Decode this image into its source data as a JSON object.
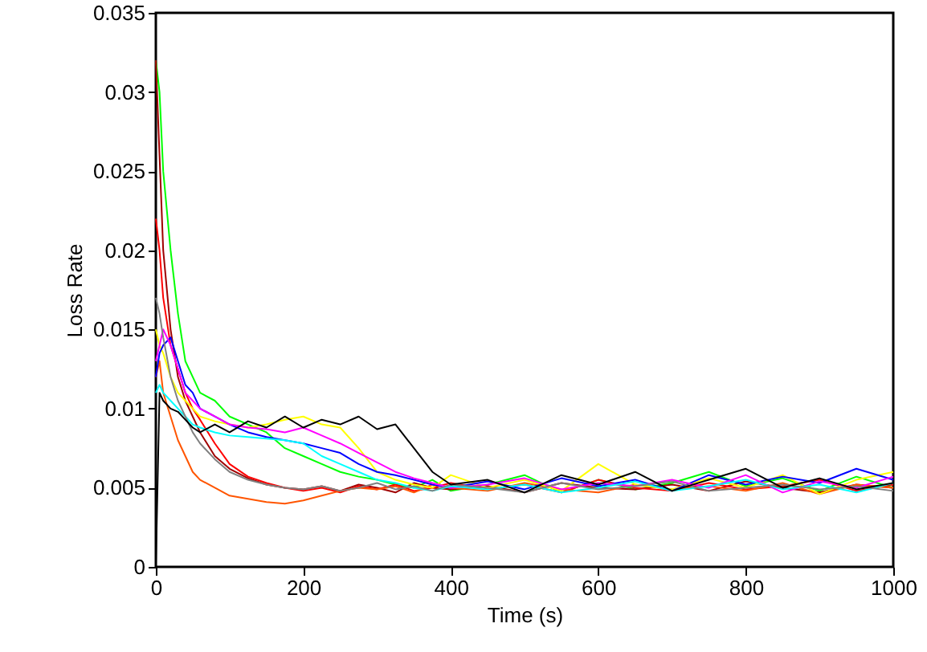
{
  "chart_data": {
    "type": "line",
    "xlabel": "Time (s)",
    "ylabel": "Loss Rate",
    "xlim": [
      0,
      1000
    ],
    "xticks": [
      0,
      200,
      400,
      600,
      800,
      1000
    ],
    "ylim": [
      0,
      0.035
    ],
    "yticks": [
      0,
      0.005,
      0.01,
      0.015,
      0.02,
      0.025,
      0.03,
      0.035
    ],
    "grid": false,
    "marker": "none",
    "line_style": "solid",
    "x": [
      0,
      5,
      10,
      20,
      30,
      40,
      50,
      60,
      80,
      100,
      125,
      150,
      175,
      200,
      225,
      250,
      275,
      300,
      325,
      350,
      375,
      400,
      450,
      500,
      550,
      600,
      650,
      700,
      750,
      800,
      850,
      900,
      950,
      1000
    ],
    "series": [
      {
        "color": "#00ff00",
        "values": [
          0.032,
          0.03,
          0.025,
          0.02,
          0.016,
          0.013,
          0.012,
          0.011,
          0.0105,
          0.0095,
          0.009,
          0.0085,
          0.0075,
          0.007,
          0.0065,
          0.006,
          0.0057,
          0.0055,
          0.0052,
          0.005,
          0.0055,
          0.0048,
          0.0052,
          0.0058,
          0.0047,
          0.0055,
          0.0049,
          0.0053,
          0.006,
          0.0051,
          0.0056,
          0.0048,
          0.0057,
          0.005
        ]
      },
      {
        "color": "#a00000",
        "values": [
          0.032,
          0.026,
          0.02,
          0.015,
          0.012,
          0.0105,
          0.0095,
          0.0085,
          0.007,
          0.0062,
          0.0056,
          0.0052,
          0.005,
          0.0049,
          0.0051,
          0.0048,
          0.0052,
          0.005,
          0.0047,
          0.0053,
          0.005,
          0.0049,
          0.0051,
          0.0047,
          0.0053,
          0.005,
          0.0049,
          0.0052,
          0.0048,
          0.0054,
          0.005,
          0.0047,
          0.0052,
          0.005
        ]
      },
      {
        "color": "#ff0000",
        "values": [
          0.022,
          0.02,
          0.017,
          0.014,
          0.0125,
          0.011,
          0.01,
          0.0093,
          0.0078,
          0.0065,
          0.0057,
          0.0053,
          0.005,
          0.0048,
          0.005,
          0.0047,
          0.0051,
          0.0049,
          0.0052,
          0.0048,
          0.005,
          0.0053,
          0.0049,
          0.0052,
          0.0047,
          0.0055,
          0.005,
          0.0048,
          0.0053,
          0.0049,
          0.0051,
          0.0055,
          0.0048,
          0.0052
        ]
      },
      {
        "color": "#ff5500",
        "values": [
          0.012,
          0.013,
          0.011,
          0.0095,
          0.008,
          0.007,
          0.006,
          0.0055,
          0.005,
          0.0045,
          0.0043,
          0.0041,
          0.004,
          0.0042,
          0.0045,
          0.0048,
          0.005,
          0.0049,
          0.0051,
          0.0047,
          0.0052,
          0.005,
          0.0048,
          0.0053,
          0.0049,
          0.0047,
          0.0052,
          0.0049,
          0.0051,
          0.0048,
          0.0053,
          0.0046,
          0.0052,
          0.005
        ]
      },
      {
        "color": "#ffff00",
        "values": [
          0.015,
          0.014,
          0.0135,
          0.012,
          0.011,
          0.0105,
          0.01,
          0.0095,
          0.0092,
          0.009,
          0.0088,
          0.009,
          0.0093,
          0.0095,
          0.009,
          0.0088,
          0.0075,
          0.006,
          0.0055,
          0.0052,
          0.005,
          0.0058,
          0.005,
          0.0055,
          0.0048,
          0.0065,
          0.0052,
          0.0049,
          0.0056,
          0.005,
          0.0058,
          0.0046,
          0.0055,
          0.006
        ]
      },
      {
        "color": "#0000ff",
        "values": [
          0.012,
          0.0135,
          0.014,
          0.0145,
          0.013,
          0.0115,
          0.011,
          0.01,
          0.0095,
          0.009,
          0.0085,
          0.0082,
          0.008,
          0.0078,
          0.0075,
          0.0072,
          0.0065,
          0.006,
          0.0058,
          0.0055,
          0.0052,
          0.005,
          0.0054,
          0.0049,
          0.0056,
          0.0051,
          0.0055,
          0.0048,
          0.0058,
          0.0052,
          0.0057,
          0.0053,
          0.0062,
          0.0055
        ]
      },
      {
        "color": "#ff00ff",
        "values": [
          0.013,
          0.014,
          0.015,
          0.014,
          0.0125,
          0.011,
          0.0105,
          0.01,
          0.0095,
          0.009,
          0.0088,
          0.0087,
          0.0085,
          0.0088,
          0.0083,
          0.0078,
          0.0072,
          0.0066,
          0.006,
          0.0056,
          0.0053,
          0.005,
          0.0052,
          0.0056,
          0.0049,
          0.0053,
          0.0051,
          0.0055,
          0.005,
          0.0058,
          0.0047,
          0.0054,
          0.005,
          0.0057
        ]
      },
      {
        "color": "#00ffff",
        "values": [
          0.011,
          0.0115,
          0.011,
          0.0105,
          0.01,
          0.0095,
          0.009,
          0.0088,
          0.0085,
          0.0083,
          0.0082,
          0.0081,
          0.008,
          0.0078,
          0.007,
          0.0065,
          0.006,
          0.0055,
          0.0053,
          0.005,
          0.0048,
          0.0051,
          0.0049,
          0.0052,
          0.0047,
          0.005,
          0.0054,
          0.0048,
          0.0051,
          0.0055,
          0.0049,
          0.0052,
          0.0047,
          0.0053
        ]
      },
      {
        "color": "#808080",
        "values": [
          0.017,
          0.016,
          0.0145,
          0.012,
          0.0105,
          0.0095,
          0.0085,
          0.0078,
          0.0068,
          0.006,
          0.0055,
          0.0052,
          0.005,
          0.0049,
          0.0051,
          0.0048,
          0.005,
          0.0053,
          0.0049,
          0.0051,
          0.0048,
          0.0052,
          0.005,
          0.0047,
          0.0053,
          0.0049,
          0.0051,
          0.0054,
          0.0048,
          0.005,
          0.0052,
          0.0049,
          0.0051,
          0.0048
        ]
      },
      {
        "color": "#000000",
        "values": [
          0,
          0.011,
          0.0105,
          0.01,
          0.0098,
          0.0093,
          0.0088,
          0.0085,
          0.009,
          0.0085,
          0.0092,
          0.0088,
          0.0095,
          0.0088,
          0.0093,
          0.009,
          0.0095,
          0.0087,
          0.009,
          0.0075,
          0.006,
          0.0052,
          0.0055,
          0.0047,
          0.0058,
          0.0052,
          0.006,
          0.0048,
          0.0055,
          0.0062,
          0.005,
          0.0056,
          0.0049,
          0.0053
        ]
      }
    ]
  }
}
